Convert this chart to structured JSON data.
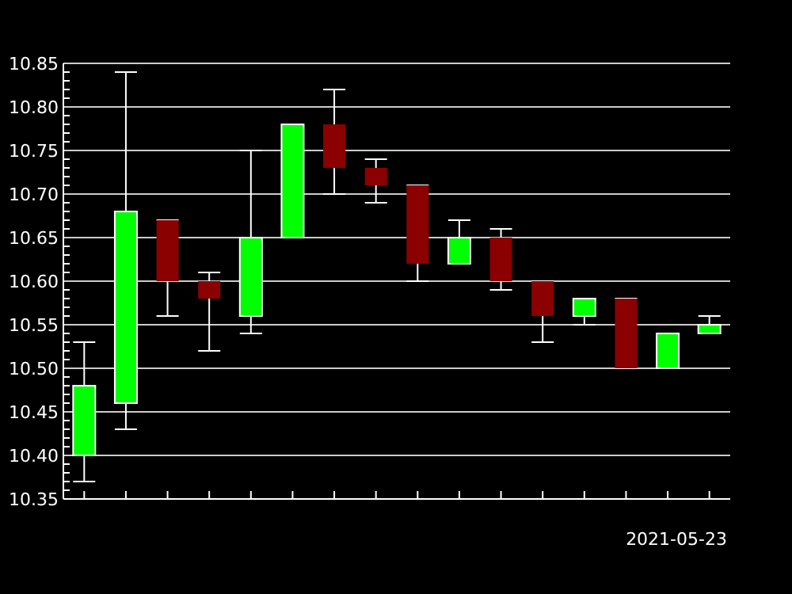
{
  "chart_data": {
    "type": "candlestick",
    "xlabel": "2021-05-23",
    "categories": [
      null,
      null,
      null,
      null,
      null,
      null,
      null,
      null,
      null,
      null,
      null,
      null,
      null,
      null,
      null,
      null
    ],
    "ohlc": [
      [
        10.4,
        10.53,
        10.37,
        10.48
      ],
      [
        10.46,
        10.84,
        10.43,
        10.68
      ],
      [
        10.67,
        10.67,
        10.56,
        10.6
      ],
      [
        10.6,
        10.61,
        10.52,
        10.58
      ],
      [
        10.56,
        10.75,
        10.54,
        10.65
      ],
      [
        10.65,
        10.78,
        10.65,
        10.78
      ],
      [
        10.78,
        10.82,
        10.7,
        10.73
      ],
      [
        10.73,
        10.74,
        10.69,
        10.71
      ],
      [
        10.71,
        10.71,
        10.6,
        10.62
      ],
      [
        10.62,
        10.67,
        10.62,
        10.65
      ],
      [
        10.65,
        10.66,
        10.59,
        10.6
      ],
      [
        10.6,
        10.6,
        10.53,
        10.56
      ],
      [
        10.56,
        10.58,
        10.55,
        10.58
      ],
      [
        10.58,
        10.58,
        10.5,
        10.5
      ],
      [
        10.5,
        10.54,
        10.5,
        10.54
      ],
      [
        10.54,
        10.56,
        10.54,
        10.55
      ]
    ],
    "colors": [
      "#00ff00",
      "#00ff00",
      "#8b0000",
      "#8b0000",
      "#00ff00",
      "#00ff00",
      "#8b0000",
      "#8b0000",
      "#8b0000",
      "#00ff00",
      "#8b0000",
      "#8b0000",
      "#00ff00",
      "#8b0000",
      "#00ff00",
      "#00ff00"
    ],
    "ylim": [
      10.35,
      10.85
    ],
    "yticks": [
      {
        "value": 10.35,
        "label": "10.35"
      },
      {
        "value": 10.36,
        "label": null
      },
      {
        "value": 10.37,
        "label": null
      },
      {
        "value": 10.38,
        "label": null
      },
      {
        "value": 10.39,
        "label": null
      },
      {
        "value": 10.4,
        "label": "10.40"
      },
      {
        "value": 10.41,
        "label": null
      },
      {
        "value": 10.42,
        "label": null
      },
      {
        "value": 10.43,
        "label": null
      },
      {
        "value": 10.44,
        "label": null
      },
      {
        "value": 10.45,
        "label": "10.45"
      },
      {
        "value": 10.46,
        "label": null
      },
      {
        "value": 10.47,
        "label": null
      },
      {
        "value": 10.48,
        "label": null
      },
      {
        "value": 10.49,
        "label": null
      },
      {
        "value": 10.5,
        "label": "10.50"
      },
      {
        "value": 10.51,
        "label": null
      },
      {
        "value": 10.52,
        "label": null
      },
      {
        "value": 10.53,
        "label": null
      },
      {
        "value": 10.54,
        "label": null
      },
      {
        "value": 10.55,
        "label": "10.55"
      },
      {
        "value": 10.56,
        "label": null
      },
      {
        "value": 10.57,
        "label": null
      },
      {
        "value": 10.58,
        "label": null
      },
      {
        "value": 10.59,
        "label": null
      },
      {
        "value": 10.6,
        "label": "10.60"
      },
      {
        "value": 10.61,
        "label": null
      },
      {
        "value": 10.62,
        "label": null
      },
      {
        "value": 10.63,
        "label": null
      },
      {
        "value": 10.64,
        "label": null
      },
      {
        "value": 10.65,
        "label": "10.65"
      },
      {
        "value": 10.66,
        "label": null
      },
      {
        "value": 10.67,
        "label": null
      },
      {
        "value": 10.68,
        "label": null
      },
      {
        "value": 10.69,
        "label": null
      },
      {
        "value": 10.7,
        "label": "10.70"
      },
      {
        "value": 10.71,
        "label": null
      },
      {
        "value": 10.72,
        "label": null
      },
      {
        "value": 10.73,
        "label": null
      },
      {
        "value": 10.74,
        "label": null
      },
      {
        "value": 10.75,
        "label": "10.75"
      },
      {
        "value": 10.76,
        "label": null
      },
      {
        "value": 10.77,
        "label": null
      },
      {
        "value": 10.78,
        "label": null
      },
      {
        "value": 10.79,
        "label": null
      },
      {
        "value": 10.8,
        "label": "10.80"
      },
      {
        "value": 10.81,
        "label": null
      },
      {
        "value": 10.82,
        "label": null
      },
      {
        "value": 10.83,
        "label": null
      },
      {
        "value": 10.84,
        "label": null
      },
      {
        "value": 10.85,
        "label": "10.85"
      }
    ],
    "grid": "y"
  }
}
